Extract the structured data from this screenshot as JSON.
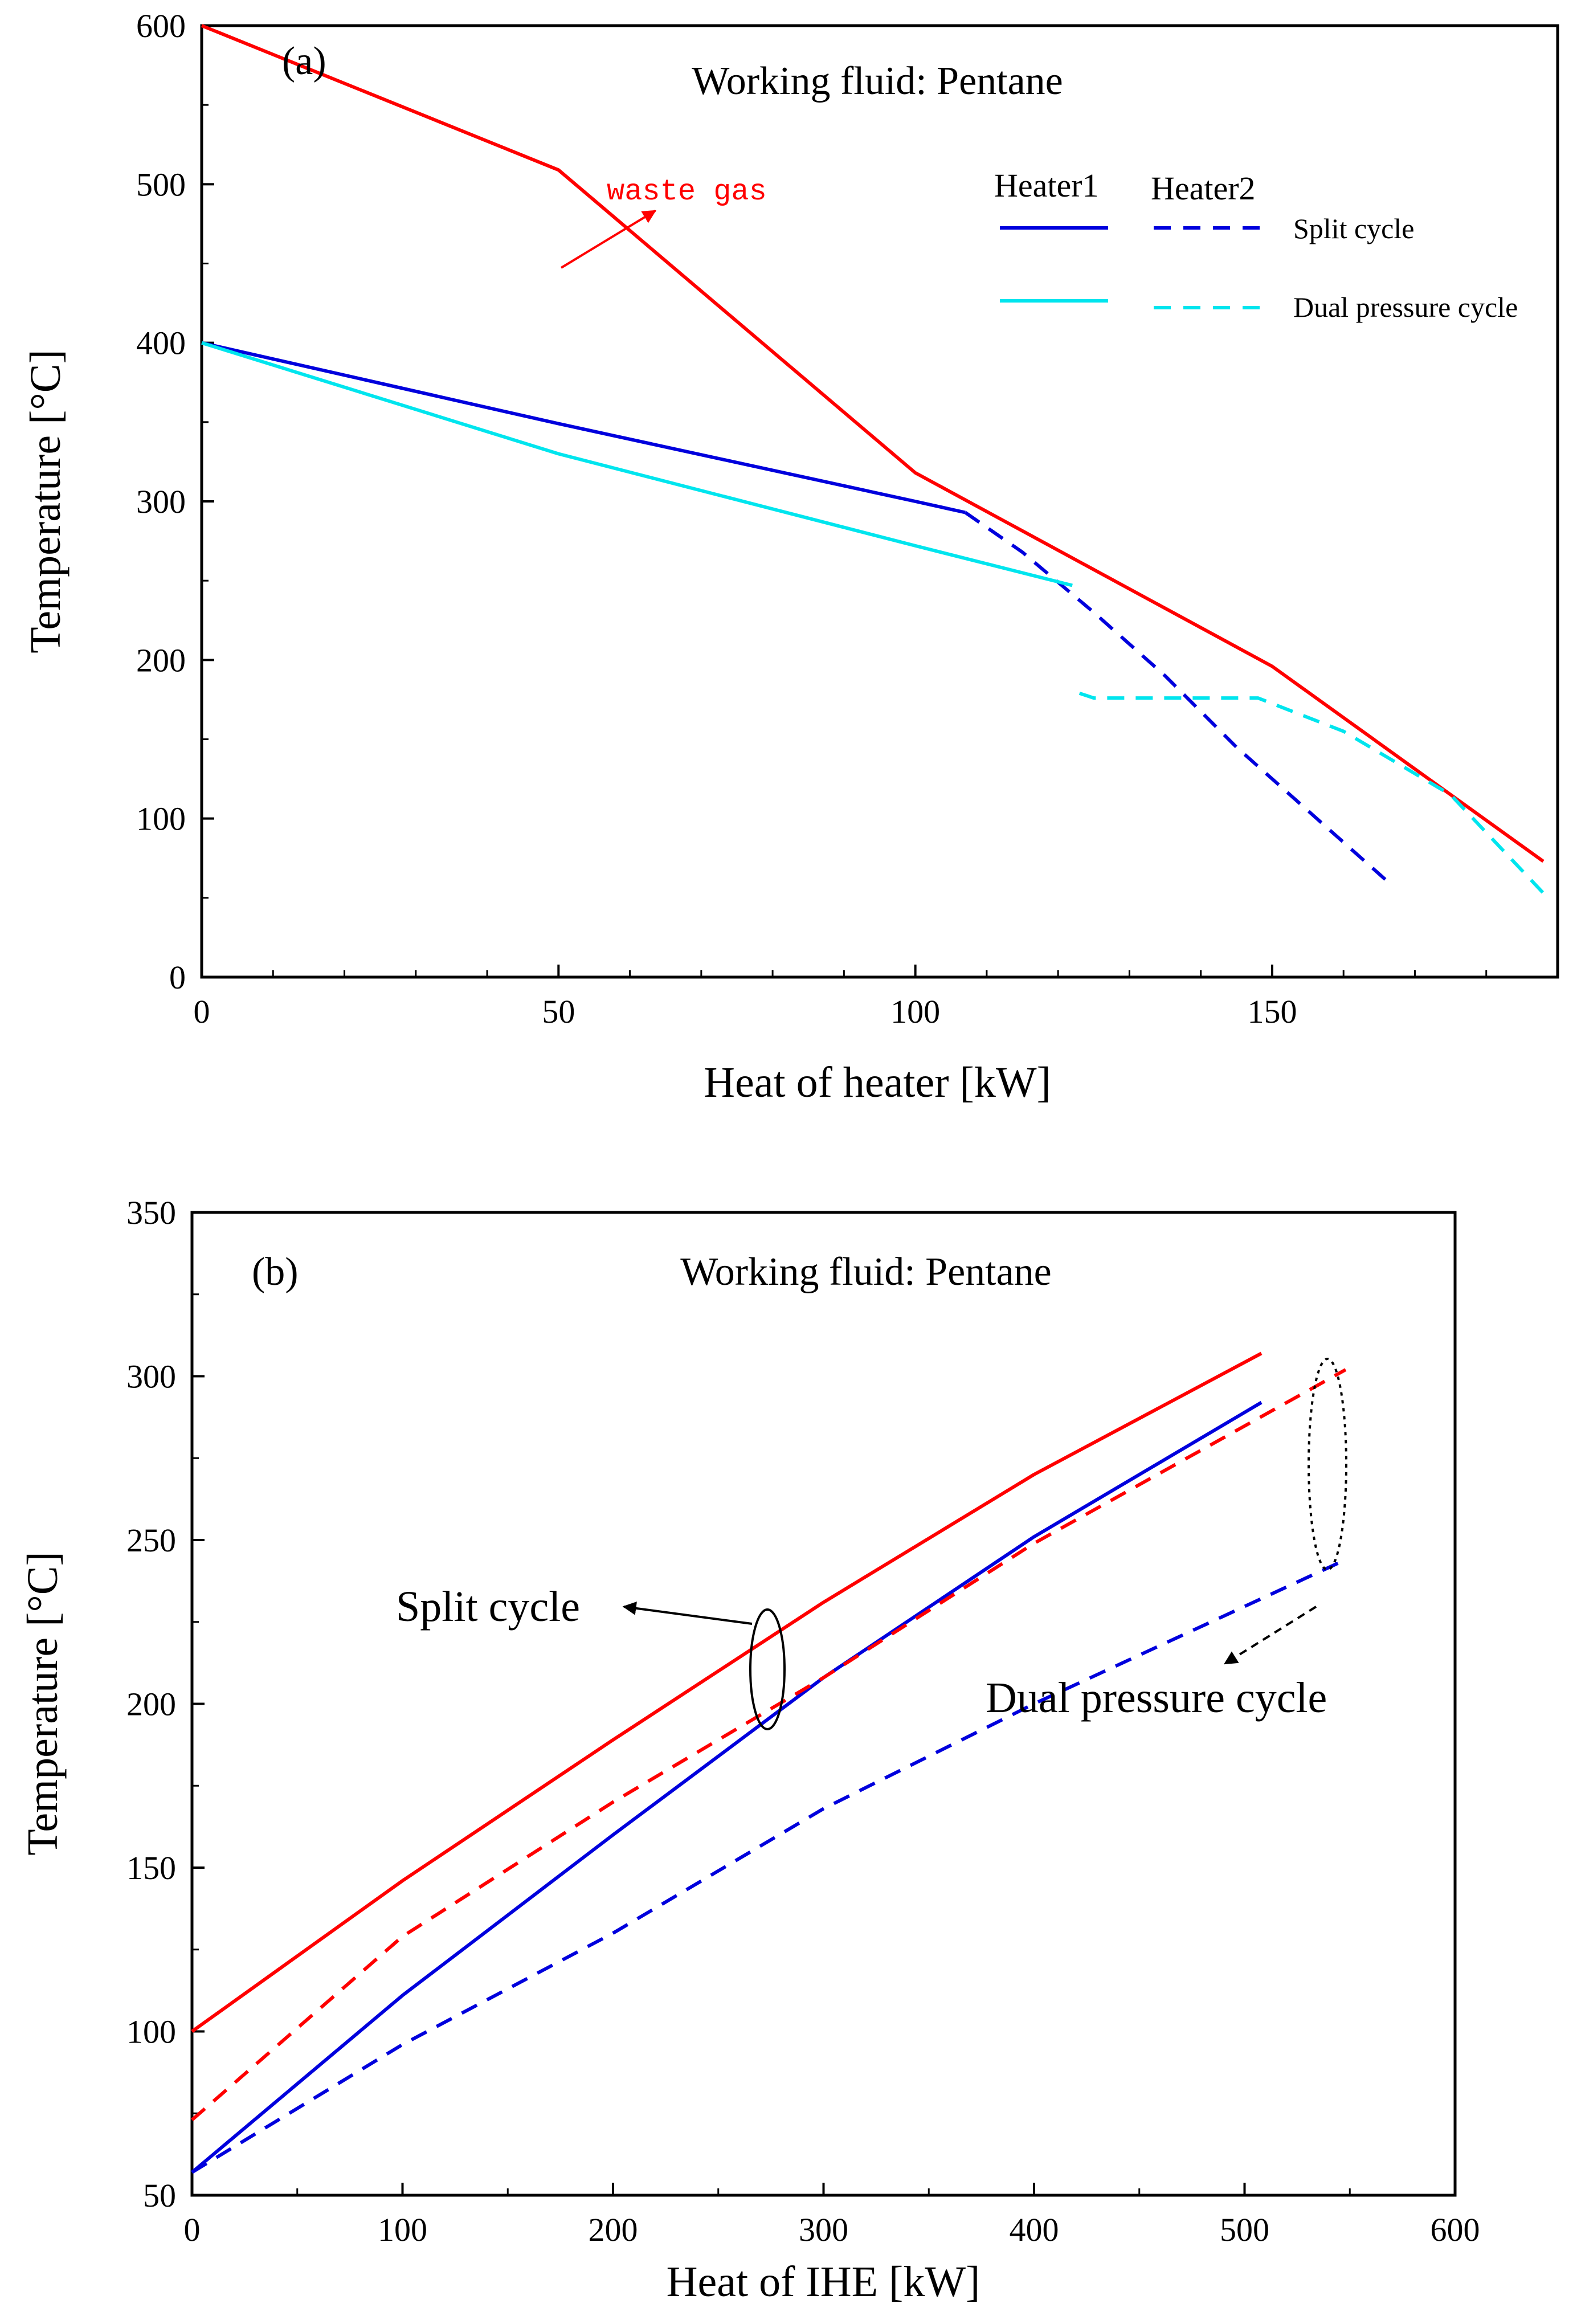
{
  "chart_data": [
    {
      "type": "line",
      "panel_label": "(a)",
      "title": "Working fluid: Pentane",
      "xlabel": "Heat of heater [kW]",
      "ylabel": "Temperature [°C]",
      "xlim": [
        0,
        190
      ],
      "ylim": [
        0,
        600
      ],
      "xticks": [
        0,
        50,
        100,
        150
      ],
      "yticks": [
        0,
        100,
        200,
        300,
        400,
        500,
        600
      ],
      "legend": {
        "position": "top-right",
        "col_headers": [
          "Heater1",
          "Heater2"
        ],
        "rows": [
          "Split cycle",
          "Dual pressure cycle"
        ]
      },
      "annotations": [
        {
          "text": "waste gas",
          "points_to": [
            64,
            505
          ]
        }
      ],
      "series": [
        {
          "name": "waste gas",
          "color": "#ff0000",
          "style": "solid",
          "points": [
            [
              0,
              600
            ],
            [
              50,
              509
            ],
            [
              100,
              318
            ],
            [
              150,
              196
            ],
            [
              188,
              73
            ]
          ]
        },
        {
          "name": "Split cycle Heater1",
          "color": "#0000dd",
          "style": "solid",
          "points": [
            [
              0,
              400
            ],
            [
              50,
              349
            ],
            [
              100,
              300
            ],
            [
              107,
              293
            ]
          ]
        },
        {
          "name": "Split cycle Heater2",
          "color": "#0000dd",
          "style": "dashed",
          "points": [
            [
              107,
              293
            ],
            [
              115,
              268
            ],
            [
              125,
              230
            ],
            [
              135,
              190
            ],
            [
              145,
              145
            ],
            [
              155,
              105
            ],
            [
              167,
              57
            ]
          ]
        },
        {
          "name": "Dual pressure cycle Heater1",
          "color": "#00e5ee",
          "style": "solid",
          "points": [
            [
              0,
              400
            ],
            [
              50,
              330
            ],
            [
              100,
              272
            ],
            [
              122,
              247
            ]
          ]
        },
        {
          "name": "Dual pressure cycle Heater2",
          "color": "#00e5ee",
          "style": "dashed",
          "points": [
            [
              123,
              179
            ],
            [
              125,
              176
            ],
            [
              148,
              176
            ],
            [
              160,
              155
            ],
            [
              175,
              115
            ],
            [
              188,
              53
            ]
          ]
        }
      ]
    },
    {
      "type": "line",
      "panel_label": "(b)",
      "title": "Working fluid: Pentane",
      "xlabel": "Heat of IHE [kW]",
      "ylabel": "Temperature [°C]",
      "xlim": [
        0,
        600
      ],
      "ylim": [
        50,
        350
      ],
      "xticks": [
        0,
        100,
        200,
        300,
        400,
        500,
        600
      ],
      "yticks": [
        50,
        100,
        150,
        200,
        250,
        300,
        350
      ],
      "annotations": [
        {
          "text": "Split cycle",
          "points_to": [
            262,
            222
          ]
        },
        {
          "text": "Dual pressure cycle",
          "points_to": [
            535,
            228
          ]
        }
      ],
      "series": [
        {
          "name": "Split cycle hot side",
          "color": "#ff0000",
          "style": "solid",
          "points": [
            [
              0,
              100
            ],
            [
              100,
              146
            ],
            [
              200,
              189
            ],
            [
              300,
              231
            ],
            [
              400,
              270
            ],
            [
              508,
              307
            ]
          ]
        },
        {
          "name": "Split cycle cold side",
          "color": "#0000dd",
          "style": "solid",
          "points": [
            [
              0,
              57
            ],
            [
              100,
              111
            ],
            [
              200,
              160
            ],
            [
              300,
              208
            ],
            [
              400,
              251
            ],
            [
              508,
              292
            ]
          ]
        },
        {
          "name": "Dual pressure cycle hot side",
          "color": "#ff0000",
          "style": "dashed",
          "points": [
            [
              0,
              73
            ],
            [
              100,
              129
            ],
            [
              200,
              170
            ],
            [
              300,
              208
            ],
            [
              400,
              249
            ],
            [
              548,
              302
            ]
          ]
        },
        {
          "name": "Dual pressure cycle cold side",
          "color": "#0000dd",
          "style": "dashed",
          "points": [
            [
              0,
              57
            ],
            [
              100,
              96
            ],
            [
              200,
              130
            ],
            [
              300,
              168
            ],
            [
              400,
              200
            ],
            [
              548,
              244
            ]
          ]
        }
      ]
    }
  ]
}
